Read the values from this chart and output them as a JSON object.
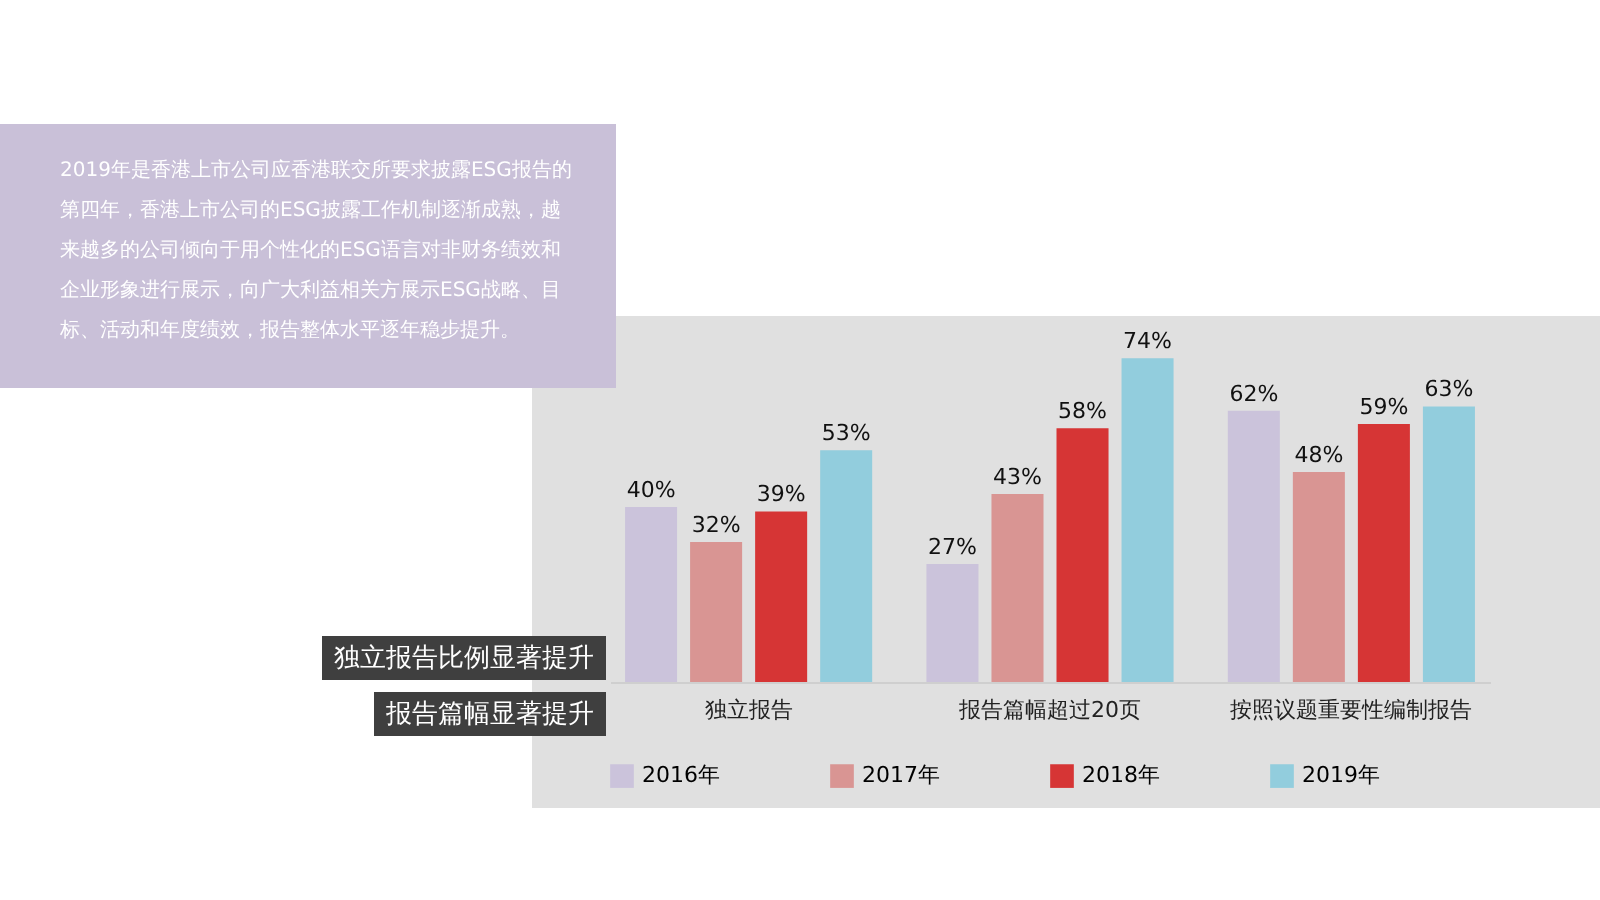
{
  "chart_data": {
    "type": "bar",
    "categories": [
      "独立报告",
      "报告篇幅超过20页",
      "按照议题重要性编制报告"
    ],
    "series": [
      {
        "name": "2016年",
        "color": "#cbc3db",
        "values": [
          40,
          27,
          62
        ],
        "value_labels": [
          "40%",
          "27%",
          "62%"
        ]
      },
      {
        "name": "2017年",
        "color": "#d99593",
        "values": [
          32,
          43,
          48
        ],
        "value_labels": [
          "32%",
          "43%",
          "48%"
        ]
      },
      {
        "name": "2018年",
        "color": "#d63535",
        "values": [
          39,
          58,
          59
        ],
        "value_labels": [
          "39%",
          "58%",
          "59%"
        ]
      },
      {
        "name": "2019年",
        "color": "#92cddd",
        "values": [
          53,
          74,
          63
        ],
        "value_labels": [
          "53%",
          "74%",
          "63%"
        ]
      }
    ],
    "legend": "bottom",
    "annotations": [
      "2019年是香港上市公司应香港联交所要求披露ESG报告的第四年，香港上市公司的ESG披露工作机制逐渐成熟，越来越多的公司倾向于用个性化的ESG语言对非财务绩效和企业形象进行展示，向广大利益相关方展示ESG战略、目标、活动和年度绩效，报告整体水平逐年稳步提升。",
      "独立报告比例显著提升",
      "报告篇幅显著提升"
    ]
  }
}
